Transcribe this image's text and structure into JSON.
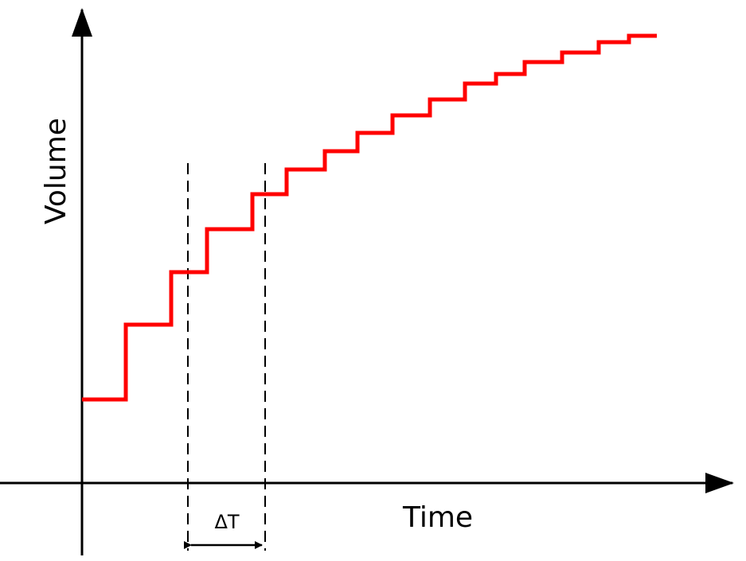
{
  "axes": {
    "y_label": "Volume",
    "x_label": "Time"
  },
  "annotation": "ΔT"
}
